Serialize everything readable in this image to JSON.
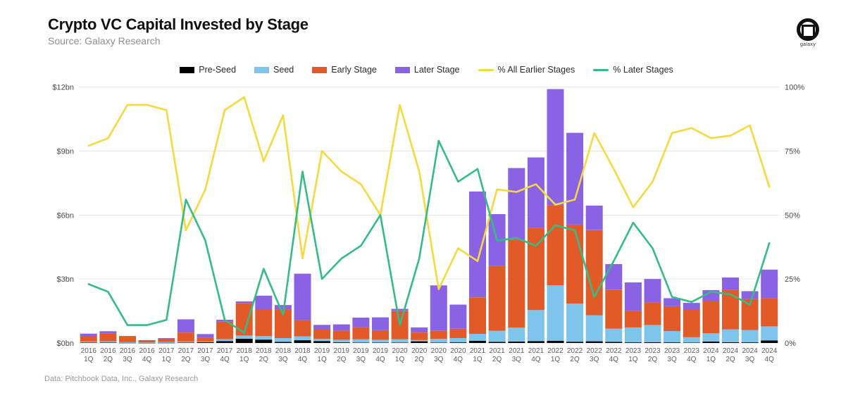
{
  "header": {
    "title": "Crypto VC Capital Invested by Stage",
    "source": "Source: Galaxy Research",
    "logo": {
      "brand": "galaxy"
    }
  },
  "footer": {
    "credit": "Data: Pitchbook Data, Inc., Galaxy Research"
  },
  "chart_data": {
    "type": "bar",
    "subtype": "stacked-bar-with-percent-lines",
    "title": "Crypto VC Capital Invested by Stage",
    "units_left": "$bn",
    "units_right": "%",
    "grid": true,
    "legend_position": "top",
    "categories": [
      "2016 1Q",
      "2016 2Q",
      "2016 3Q",
      "2016 4Q",
      "2017 1Q",
      "2017 2Q",
      "2017 3Q",
      "2017 4Q",
      "2018 1Q",
      "2018 2Q",
      "2018 3Q",
      "2018 4Q",
      "2019 1Q",
      "2019 2Q",
      "2019 3Q",
      "2019 4Q",
      "2020 1Q",
      "2020 2Q",
      "2020 3Q",
      "2020 4Q",
      "2021 1Q",
      "2021 2Q",
      "2021 3Q",
      "2021 4Q",
      "2022 1Q",
      "2022 2Q",
      "2022 3Q",
      "2022 4Q",
      "2023 1Q",
      "2023 2Q",
      "2023 3Q",
      "2023 4Q",
      "2024 1Q",
      "2024 2Q",
      "2024 3Q",
      "2024 4Q"
    ],
    "series": [
      {
        "name": "Pre-Seed",
        "type": "bar",
        "color": "#000000",
        "values": [
          0.02,
          0.02,
          0.01,
          0.005,
          0.01,
          0.02,
          0.04,
          0.09,
          0.2,
          0.16,
          0.05,
          0.13,
          0.09,
          0.03,
          0.02,
          0.02,
          0.02,
          0.08,
          0.02,
          0.03,
          0.1,
          0.05,
          0.07,
          0.09,
          0.1,
          0.06,
          0.08,
          0.05,
          0.03,
          0.04,
          0.03,
          0.02,
          0.07,
          0.04,
          0.03,
          0.12
        ]
      },
      {
        "name": "Seed",
        "type": "bar",
        "color": "#7EC5EC",
        "values": [
          0.05,
          0.06,
          0.03,
          0.02,
          0.03,
          0.05,
          0.03,
          0.09,
          0.15,
          0.16,
          0.18,
          0.18,
          0.1,
          0.12,
          0.16,
          0.13,
          0.16,
          0.06,
          0.17,
          0.2,
          0.33,
          0.52,
          0.65,
          1.45,
          2.6,
          1.79,
          1.22,
          0.62,
          0.7,
          0.8,
          0.53,
          0.25,
          0.38,
          0.6,
          0.58,
          0.66
        ]
      },
      {
        "name": "Early Stage",
        "type": "bar",
        "color": "#E15A28",
        "values": [
          0.26,
          0.35,
          0.27,
          0.1,
          0.17,
          0.42,
          0.18,
          0.82,
          1.52,
          1.25,
          1.35,
          0.76,
          0.44,
          0.43,
          0.56,
          0.45,
          1.31,
          0.35,
          0.38,
          0.44,
          1.71,
          3.03,
          4.13,
          3.85,
          3.75,
          3.7,
          3.99,
          1.83,
          0.78,
          1.06,
          1.16,
          1.3,
          1.53,
          1.84,
          1.45,
          1.32
        ]
      },
      {
        "name": "Later Stage",
        "type": "bar",
        "color": "#8A63E5",
        "values": [
          0.11,
          0.12,
          0.02,
          0.01,
          0.02,
          0.62,
          0.17,
          0.09,
          0.08,
          0.65,
          0.2,
          2.18,
          0.22,
          0.29,
          0.45,
          0.6,
          0.11,
          0.24,
          2.13,
          1.13,
          4.96,
          2.44,
          3.35,
          3.31,
          5.45,
          4.3,
          1.15,
          1.2,
          1.33,
          1.1,
          0.38,
          0.31,
          0.5,
          0.59,
          0.37,
          1.34
        ]
      },
      {
        "name": "% All Earlier Stages",
        "type": "line",
        "axis": "right",
        "color": "#F5D93F",
        "values": [
          77,
          80,
          93,
          93,
          91,
          44,
          60,
          91,
          96,
          71,
          89,
          33,
          75,
          67,
          62,
          50,
          93,
          67,
          21,
          37,
          32,
          60,
          59,
          62,
          54,
          56,
          82,
          68,
          53,
          63,
          82,
          84,
          80,
          81,
          85,
          61
        ]
      },
      {
        "name": "% Later Stages",
        "type": "line",
        "axis": "right",
        "color": "#35BC85",
        "values": [
          23,
          20,
          7,
          7,
          9,
          56,
          40,
          9,
          4,
          29,
          11,
          67,
          25,
          33,
          38,
          50,
          7,
          33,
          79,
          63,
          68,
          40,
          41,
          38,
          46,
          44,
          18,
          32,
          47,
          37,
          18,
          16,
          20,
          19,
          15,
          39
        ]
      }
    ],
    "left_axis": {
      "min": 0,
      "max": 12,
      "ticks": [
        {
          "value": 0,
          "label": "$0bn"
        },
        {
          "value": 3,
          "label": "$3bn"
        },
        {
          "value": 6,
          "label": "$6bn"
        },
        {
          "value": 9,
          "label": "$9bn"
        },
        {
          "value": 12,
          "label": "$12bn"
        }
      ]
    },
    "right_axis": {
      "min": 0,
      "max": 100,
      "ticks": [
        {
          "value": 0,
          "label": "0%"
        },
        {
          "value": 25,
          "label": "25%"
        },
        {
          "value": 50,
          "label": "50%"
        },
        {
          "value": 75,
          "label": "75%"
        },
        {
          "value": 100,
          "label": "100%"
        }
      ]
    }
  }
}
